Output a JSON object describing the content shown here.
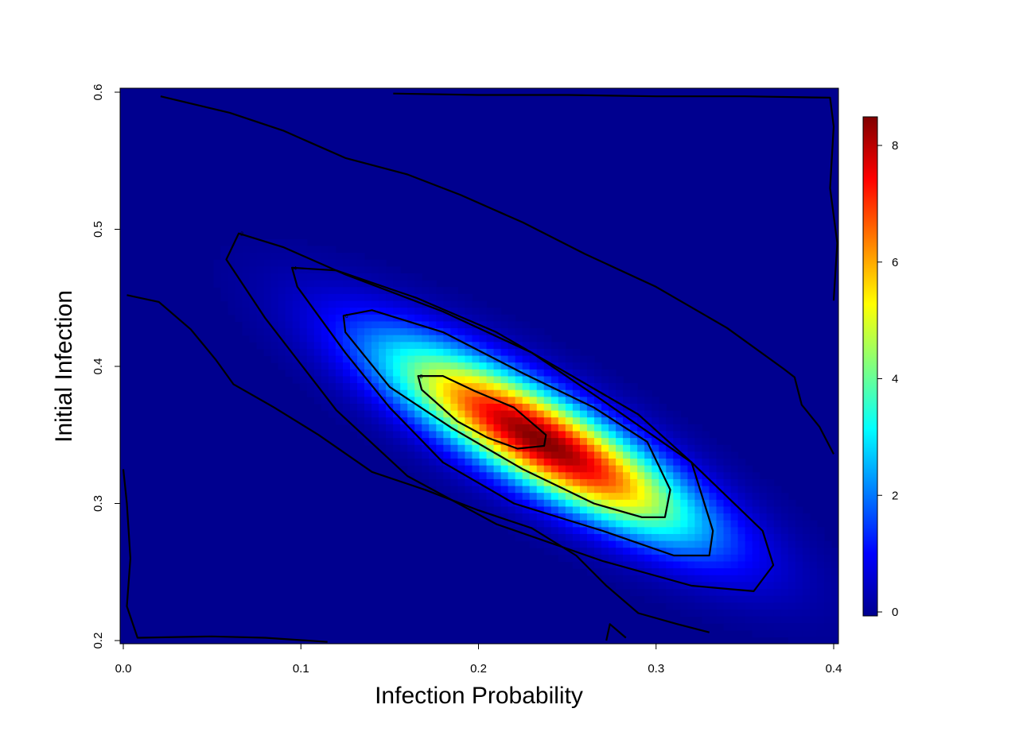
{
  "chart_data": {
    "type": "heatmap",
    "title": "",
    "xlabel": "Infection Probability",
    "ylabel": "Initial Infection",
    "xlim": [
      0.0,
      0.4
    ],
    "ylim": [
      0.2,
      0.6
    ],
    "x_ticks": [
      "0.0",
      "0.1",
      "0.2",
      "0.3",
      "0.4"
    ],
    "y_ticks": [
      "0.2",
      "0.3",
      "0.4",
      "0.5",
      "0.6"
    ],
    "colorbar": {
      "range": [
        0,
        8.5
      ],
      "ticks": [
        "0",
        "2",
        "4",
        "6",
        "8"
      ],
      "colormap": "jet",
      "position": "right"
    },
    "density_model": {
      "peak_value": 8.5,
      "center": [
        0.235,
        0.346
      ],
      "major_axis_direction": [
        0.1,
        -0.077
      ],
      "sigma_along": 0.072,
      "sigma_across": 0.0205
    },
    "contour_levels": [
      0,
      2,
      4,
      6,
      8
    ],
    "contours": [
      {
        "level": "2",
        "points": [
          [
            0.065,
            0.497
          ],
          [
            0.09,
            0.487
          ],
          [
            0.125,
            0.467
          ],
          [
            0.18,
            0.44
          ],
          [
            0.23,
            0.41
          ],
          [
            0.27,
            0.375
          ],
          [
            0.32,
            0.33
          ],
          [
            0.36,
            0.28
          ],
          [
            0.366,
            0.255
          ],
          [
            0.355,
            0.236
          ],
          [
            0.32,
            0.24
          ],
          [
            0.27,
            0.258
          ],
          [
            0.21,
            0.285
          ],
          [
            0.16,
            0.32
          ],
          [
            0.12,
            0.368
          ],
          [
            0.08,
            0.435
          ],
          [
            0.058,
            0.478
          ]
        ]
      },
      {
        "level": "4",
        "points": [
          [
            0.095,
            0.472
          ],
          [
            0.12,
            0.47
          ],
          [
            0.165,
            0.45
          ],
          [
            0.21,
            0.425
          ],
          [
            0.25,
            0.395
          ],
          [
            0.29,
            0.365
          ],
          [
            0.32,
            0.33
          ],
          [
            0.332,
            0.28
          ],
          [
            0.33,
            0.262
          ],
          [
            0.31,
            0.262
          ],
          [
            0.27,
            0.28
          ],
          [
            0.22,
            0.3
          ],
          [
            0.18,
            0.33
          ],
          [
            0.15,
            0.37
          ],
          [
            0.125,
            0.41
          ],
          [
            0.098,
            0.458
          ]
        ]
      },
      {
        "level": "6",
        "points": [
          [
            0.124,
            0.437
          ],
          [
            0.14,
            0.441
          ],
          [
            0.18,
            0.425
          ],
          [
            0.225,
            0.395
          ],
          [
            0.265,
            0.37
          ],
          [
            0.295,
            0.345
          ],
          [
            0.308,
            0.31
          ],
          [
            0.305,
            0.29
          ],
          [
            0.292,
            0.29
          ],
          [
            0.265,
            0.3
          ],
          [
            0.225,
            0.325
          ],
          [
            0.185,
            0.355
          ],
          [
            0.15,
            0.385
          ],
          [
            0.125,
            0.425
          ]
        ]
      },
      {
        "level": "8",
        "points": [
          [
            0.166,
            0.393
          ],
          [
            0.18,
            0.393
          ],
          [
            0.198,
            0.382
          ],
          [
            0.22,
            0.37
          ],
          [
            0.238,
            0.35
          ],
          [
            0.237,
            0.342
          ],
          [
            0.222,
            0.34
          ],
          [
            0.205,
            0.348
          ],
          [
            0.188,
            0.36
          ],
          [
            0.168,
            0.383
          ]
        ]
      },
      {
        "level": "0",
        "points": [
          [
            0.021,
            0.597
          ],
          [
            0.06,
            0.585
          ],
          [
            0.09,
            0.572
          ],
          [
            0.125,
            0.552
          ],
          [
            0.16,
            0.54
          ],
          [
            0.19,
            0.525
          ],
          [
            0.225,
            0.505
          ],
          [
            0.26,
            0.482
          ],
          [
            0.3,
            0.458
          ],
          [
            0.34,
            0.428
          ],
          [
            0.372,
            0.398
          ],
          [
            0.378,
            0.392
          ],
          [
            0.382,
            0.372
          ],
          [
            0.392,
            0.356
          ],
          [
            0.4,
            0.336
          ]
        ]
      },
      {
        "level": "0",
        "points": [
          [
            0.002,
            0.452
          ],
          [
            0.02,
            0.447
          ],
          [
            0.038,
            0.427
          ],
          [
            0.052,
            0.405
          ],
          [
            0.062,
            0.387
          ],
          [
            0.085,
            0.37
          ],
          [
            0.11,
            0.35
          ],
          [
            0.14,
            0.323
          ],
          [
            0.17,
            0.31
          ],
          [
            0.2,
            0.295
          ],
          [
            0.23,
            0.282
          ],
          [
            0.255,
            0.262
          ],
          [
            0.272,
            0.24
          ],
          [
            0.29,
            0.22
          ],
          [
            0.312,
            0.212
          ],
          [
            0.33,
            0.206
          ]
        ]
      },
      {
        "level": "0",
        "points": [
          [
            0.152,
            0.599
          ],
          [
            0.2,
            0.598
          ],
          [
            0.25,
            0.598
          ],
          [
            0.3,
            0.597
          ],
          [
            0.35,
            0.597
          ],
          [
            0.398,
            0.596
          ],
          [
            0.4,
            0.575
          ],
          [
            0.398,
            0.53
          ],
          [
            0.402,
            0.49
          ],
          [
            0.4,
            0.448
          ]
        ]
      },
      {
        "level": "0",
        "points": [
          [
            0.0,
            0.325
          ],
          [
            0.002,
            0.3
          ],
          [
            0.004,
            0.26
          ],
          [
            0.002,
            0.225
          ],
          [
            0.008,
            0.202
          ],
          [
            0.05,
            0.203
          ],
          [
            0.08,
            0.202
          ],
          [
            0.115,
            0.199
          ]
        ]
      },
      {
        "level": "0",
        "points": [
          [
            0.272,
            0.2
          ],
          [
            0.274,
            0.212
          ],
          [
            0.283,
            0.202
          ]
        ]
      }
    ]
  }
}
